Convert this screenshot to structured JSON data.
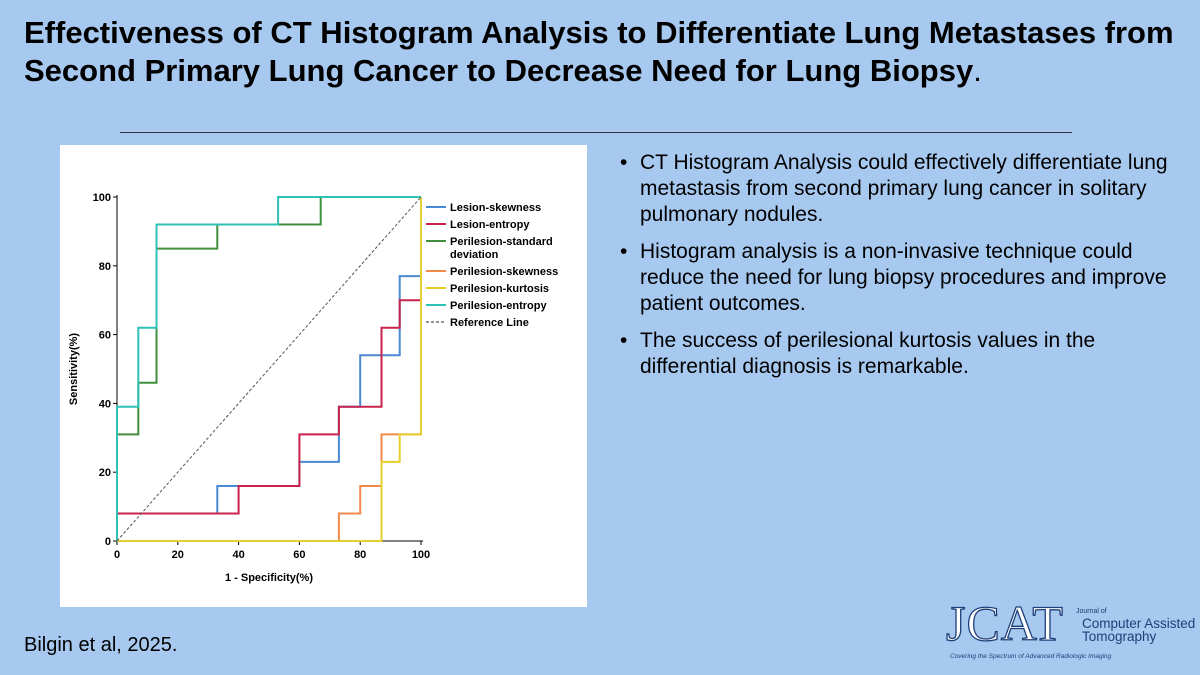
{
  "title": "Effectiveness of CT Histogram Analysis to Differentiate Lung Metastases from Second Primary Lung Cancer to Decrease Need for Lung Biopsy",
  "title_end": ".",
  "bullets": [
    "CT Histogram Analysis could effectively differentiate lung  metastasis from second primary lung cancer in solitary pulmonary nodules.",
    "Histogram  analysis is a non-invasive technique could reduce the need for lung biopsy procedures and improve patient outcomes.",
    "The success of perilesional kurtosis values in the differential diagnosis is remarkable."
  ],
  "citation": "Bilgin et al, 2025.",
  "logo": {
    "acronym": "JCAT",
    "small_text": "Journal of",
    "name_line1": "Computer Assisted",
    "name_line2": "Tomography",
    "tagline": "Covering the Spectrum of Advanced Radiologic Imaging"
  },
  "chart_data": {
    "type": "line",
    "xlabel": "1 - Specificity(%)",
    "ylabel": "Sensitivity(%)",
    "xlim": [
      0,
      100
    ],
    "ylim": [
      0,
      100
    ],
    "xticks": [
      0,
      20,
      40,
      60,
      80,
      100
    ],
    "yticks": [
      0,
      20,
      40,
      60,
      80,
      100
    ],
    "grid": false,
    "legend_position": "top-right",
    "series": [
      {
        "name": "Lesion-skewness",
        "color": "#4a8ad4",
        "dash": false,
        "x": [
          0,
          0,
          33,
          33,
          40,
          40,
          60,
          60,
          73,
          73,
          80,
          80,
          87,
          87,
          93,
          93,
          100,
          100
        ],
        "y": [
          0,
          8,
          8,
          16,
          16,
          16,
          16,
          23,
          23,
          39,
          39,
          54,
          54,
          54,
          54,
          77,
          77,
          100
        ]
      },
      {
        "name": "Lesion-entropy",
        "color": "#c8234a",
        "dash": false,
        "x": [
          0,
          0,
          40,
          40,
          60,
          60,
          73,
          73,
          87,
          87,
          93,
          93,
          100,
          100
        ],
        "y": [
          0,
          8,
          8,
          16,
          16,
          31,
          31,
          39,
          39,
          62,
          62,
          70,
          70,
          100
        ]
      },
      {
        "name": "Perilesion-standard deviation",
        "color": "#3f8f3f",
        "dash": false,
        "x": [
          0,
          0,
          7,
          7,
          13,
          13,
          33,
          33,
          67,
          67,
          100
        ],
        "y": [
          0,
          31,
          31,
          46,
          46,
          85,
          85,
          92,
          92,
          100,
          100
        ]
      },
      {
        "name": "Perilesion-skewness",
        "color": "#f08a4b",
        "dash": false,
        "x": [
          0,
          73,
          73,
          80,
          80,
          87,
          87,
          93,
          93,
          100,
          100
        ],
        "y": [
          0,
          0,
          8,
          8,
          16,
          16,
          31,
          31,
          31,
          31,
          100
        ]
      },
      {
        "name": "Perilesion-kurtosis",
        "color": "#e6cf2c",
        "dash": false,
        "x": [
          0,
          87,
          87,
          93,
          93,
          100,
          100
        ],
        "y": [
          0,
          0,
          23,
          23,
          31,
          31,
          100
        ]
      },
      {
        "name": "Perilesion-entropy",
        "color": "#2ec1b8",
        "dash": false,
        "x": [
          0,
          0,
          7,
          7,
          13,
          13,
          53,
          53,
          100
        ],
        "y": [
          0,
          39,
          39,
          62,
          62,
          92,
          92,
          100,
          100
        ]
      },
      {
        "name": "Reference Line",
        "color": "#555555",
        "dash": true,
        "x": [
          0,
          100
        ],
        "y": [
          0,
          100
        ]
      }
    ]
  }
}
